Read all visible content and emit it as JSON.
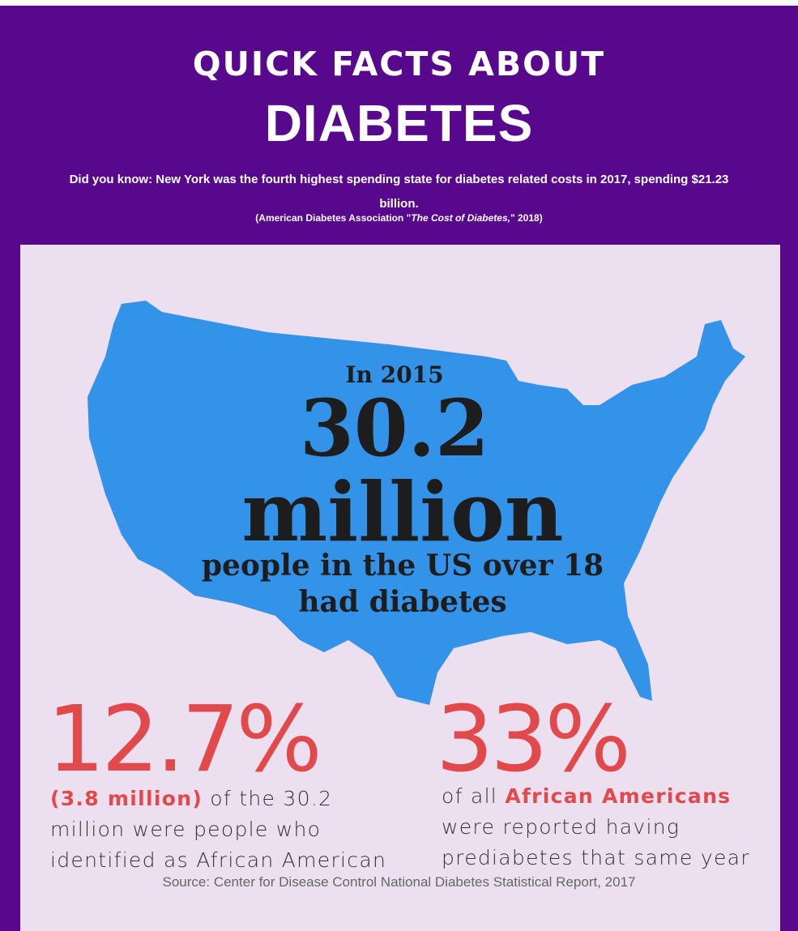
{
  "header": {
    "title_line1": "QUICK FACTS ABOUT",
    "title_line2": "DIABETES",
    "intro": "Did you know: New York was the fourth highest spending state for diabetes related costs in 2017, spending $21.23 billion.",
    "citation": {
      "before": "(American Diabetes Association \"",
      "italic": "The Cost of Diabetes,",
      "after": "\" 2018)"
    }
  },
  "map_fact": {
    "lead": "In 2015",
    "number": "30.2",
    "unit": "million",
    "line1": "people in the US over 18",
    "line2": "had diabetes"
  },
  "stats": [
    {
      "big": "12.7%",
      "highlight": "(3.8 million)",
      "text": " of the 30.2 million were people who identified as African American"
    },
    {
      "big": "33%",
      "before": "of all ",
      "highlight": "African Americans",
      "text": " were reported having prediabetes that same year"
    }
  ],
  "source": "Source: Center for Disease Control National Diabetes Statistical Report, 2017"
}
